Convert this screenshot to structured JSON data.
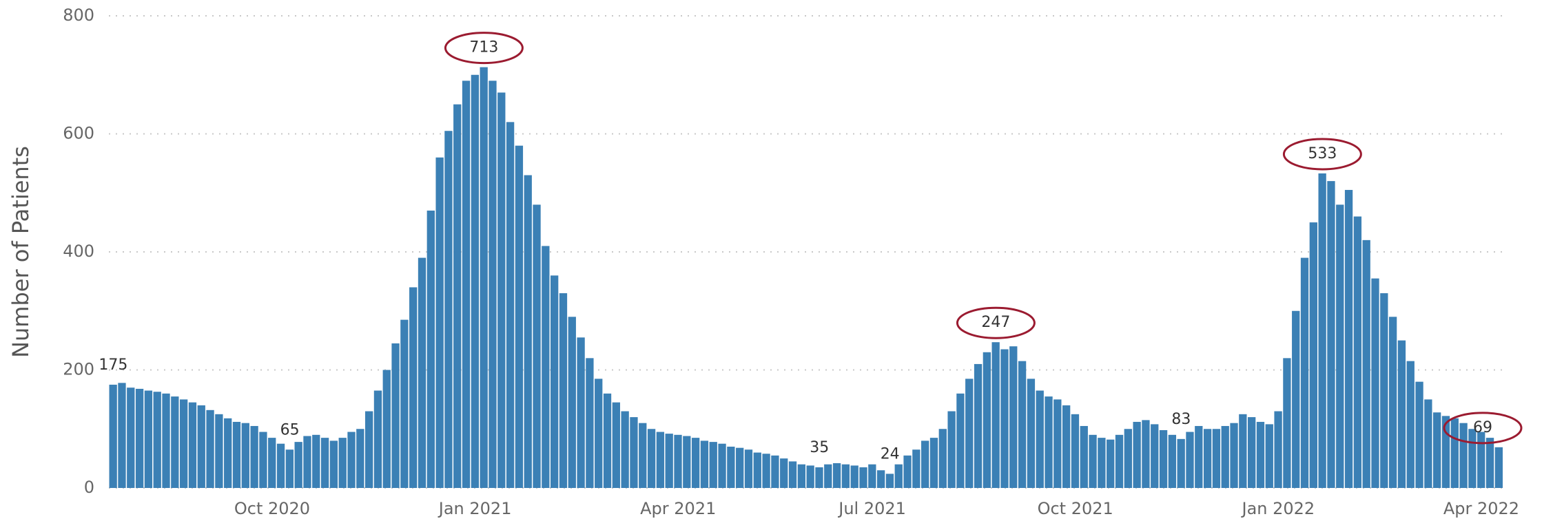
{
  "chart_data": {
    "type": "bar",
    "y_label": "Number of Patients",
    "color": "#3b80b5",
    "annotation_color": "#9b1b30",
    "grid": true,
    "ylim": [
      0,
      800
    ],
    "yticks": [
      0,
      200,
      400,
      600,
      800
    ],
    "categories": [
      null,
      null,
      null,
      null,
      null,
      null,
      null,
      null,
      null,
      null,
      null,
      null,
      null,
      null,
      null,
      null,
      null,
      null,
      "Oct 2020",
      null,
      null,
      null,
      null,
      null,
      null,
      null,
      null,
      null,
      null,
      null,
      null,
      null,
      null,
      null,
      null,
      null,
      null,
      null,
      null,
      null,
      null,
      "Jan 2021",
      null,
      null,
      null,
      null,
      null,
      null,
      null,
      null,
      null,
      null,
      null,
      null,
      null,
      null,
      null,
      null,
      null,
      null,
      null,
      null,
      null,
      null,
      "Apr 2021",
      null,
      null,
      null,
      null,
      null,
      null,
      null,
      null,
      null,
      null,
      null,
      null,
      null,
      null,
      null,
      null,
      null,
      null,
      null,
      null,
      null,
      "Jul 2021",
      null,
      null,
      null,
      null,
      null,
      null,
      null,
      null,
      null,
      null,
      null,
      null,
      null,
      null,
      null,
      null,
      null,
      null,
      null,
      null,
      null,
      null,
      "Oct 2021",
      null,
      null,
      null,
      null,
      null,
      null,
      null,
      null,
      null,
      null,
      null,
      null,
      null,
      null,
      null,
      null,
      null,
      null,
      null,
      null,
      null,
      null,
      "Jan 2022",
      null,
      null,
      null,
      null,
      null,
      null,
      null,
      null,
      null,
      null,
      null,
      null,
      null,
      null,
      null,
      null,
      null,
      null,
      null,
      null,
      null,
      null,
      "Apr 2022",
      null,
      null
    ],
    "values": [
      175,
      178,
      170,
      168,
      165,
      163,
      160,
      155,
      150,
      145,
      140,
      132,
      125,
      118,
      112,
      110,
      105,
      95,
      85,
      75,
      65,
      78,
      88,
      90,
      85,
      80,
      85,
      95,
      100,
      130,
      165,
      200,
      245,
      285,
      340,
      390,
      470,
      560,
      605,
      650,
      690,
      700,
      713,
      690,
      670,
      620,
      580,
      530,
      480,
      410,
      360,
      330,
      290,
      255,
      220,
      185,
      160,
      145,
      130,
      120,
      110,
      100,
      95,
      92,
      90,
      88,
      85,
      80,
      78,
      75,
      70,
      68,
      65,
      60,
      58,
      55,
      50,
      45,
      40,
      38,
      35,
      40,
      42,
      40,
      38,
      35,
      40,
      30,
      24,
      40,
      55,
      65,
      80,
      85,
      100,
      130,
      160,
      185,
      210,
      230,
      247,
      235,
      240,
      215,
      185,
      165,
      155,
      150,
      140,
      125,
      105,
      90,
      85,
      82,
      90,
      100,
      112,
      115,
      108,
      98,
      90,
      83,
      95,
      105,
      100,
      100,
      105,
      110,
      125,
      120,
      112,
      108,
      130,
      220,
      300,
      390,
      450,
      533,
      520,
      480,
      505,
      460,
      420,
      355,
      330,
      290,
      250,
      215,
      180,
      150,
      128,
      122,
      118,
      110,
      100,
      95,
      85,
      69
    ],
    "value_labels": [
      "175",
      null,
      null,
      null,
      null,
      null,
      null,
      null,
      null,
      null,
      null,
      null,
      null,
      null,
      null,
      null,
      null,
      null,
      null,
      null,
      "65",
      null,
      null,
      null,
      null,
      null,
      null,
      null,
      null,
      null,
      null,
      null,
      null,
      null,
      null,
      null,
      null,
      null,
      null,
      null,
      null,
      null,
      "713",
      null,
      null,
      null,
      null,
      null,
      null,
      null,
      null,
      null,
      null,
      null,
      null,
      null,
      null,
      null,
      null,
      null,
      null,
      null,
      null,
      null,
      null,
      null,
      null,
      null,
      null,
      null,
      null,
      null,
      null,
      null,
      null,
      null,
      null,
      null,
      null,
      null,
      "35",
      null,
      null,
      null,
      null,
      null,
      null,
      null,
      "24",
      null,
      null,
      null,
      null,
      null,
      null,
      null,
      null,
      null,
      null,
      null,
      "247",
      null,
      null,
      null,
      null,
      null,
      null,
      null,
      null,
      null,
      null,
      null,
      null,
      null,
      null,
      null,
      null,
      null,
      null,
      null,
      null,
      "83",
      null,
      null,
      null,
      null,
      null,
      null,
      null,
      null,
      null,
      null,
      null,
      null,
      null,
      null,
      null,
      "533",
      null,
      null,
      null,
      null,
      null,
      null,
      null,
      null,
      null,
      null,
      null,
      null,
      null,
      null,
      null,
      null,
      null,
      null,
      null,
      "69"
    ]
  }
}
